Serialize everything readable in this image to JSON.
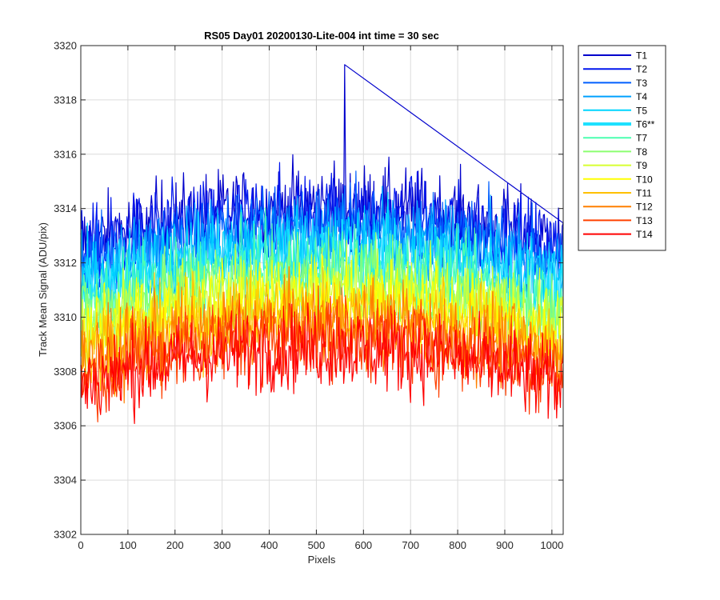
{
  "chart_data": {
    "type": "line",
    "title": "RS05 Day01 20200130-Lite-004 int time = 30 sec",
    "xlabel": "Pixels",
    "ylabel": "Track Mean Signal (ADU/pix)",
    "xlim": [
      0,
      1024
    ],
    "ylim": [
      3302,
      3320
    ],
    "xticks": [
      0,
      100,
      200,
      300,
      400,
      500,
      600,
      700,
      800,
      900,
      1000
    ],
    "yticks": [
      3302,
      3304,
      3306,
      3308,
      3310,
      3312,
      3314,
      3316,
      3318,
      3320
    ],
    "grid": true,
    "legend_position": "outside-top-right",
    "series": [
      {
        "name": "T1",
        "color": "#0000cc",
        "center_value": 3314.1,
        "edge_value": 3312.7,
        "peak": {
          "x": 560,
          "y": 3319.3
        }
      },
      {
        "name": "T2",
        "color": "#0015ee",
        "center_value": 3313.8,
        "edge_value": 3312.4
      },
      {
        "name": "T3",
        "color": "#005fff",
        "center_value": 3313.4,
        "edge_value": 3312.0
      },
      {
        "name": "T4",
        "color": "#00a0ff",
        "center_value": 3313.0,
        "edge_value": 3311.6
      },
      {
        "name": "T5",
        "color": "#00d5ff",
        "center_value": 3312.6,
        "edge_value": 3311.2
      },
      {
        "name": "T6**",
        "color": "#1ee1ff",
        "center_value": 3312.2,
        "edge_value": 3310.8,
        "highlighted": true
      },
      {
        "name": "T7",
        "color": "#4cffb0",
        "center_value": 3311.8,
        "edge_value": 3310.4
      },
      {
        "name": "T8",
        "color": "#8cff70",
        "center_value": 3311.4,
        "edge_value": 3310.0
      },
      {
        "name": "T9",
        "color": "#d8ff30",
        "center_value": 3311.0,
        "edge_value": 3309.6
      },
      {
        "name": "T10",
        "color": "#ffff00",
        "center_value": 3310.6,
        "edge_value": 3309.2
      },
      {
        "name": "T11",
        "color": "#ffc000",
        "center_value": 3310.2,
        "edge_value": 3308.8
      },
      {
        "name": "T12",
        "color": "#ff8000",
        "center_value": 3309.8,
        "edge_value": 3308.4
      },
      {
        "name": "T13",
        "color": "#ff4000",
        "center_value": 3309.3,
        "edge_value": 3307.9
      },
      {
        "name": "T14",
        "color": "#ff0000",
        "center_value": 3308.9,
        "edge_value": 3307.5
      }
    ],
    "noise_amplitude_adu": 1.4
  }
}
